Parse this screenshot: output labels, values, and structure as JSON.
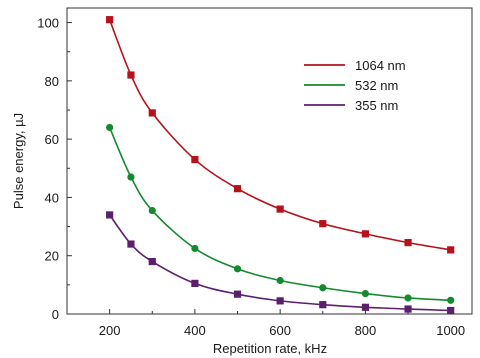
{
  "chart_data": {
    "type": "line",
    "xlabel": "Repetition rate, kHz",
    "ylabel": "Pulse energy, µJ",
    "xlim": [
      100,
      1050
    ],
    "ylim": [
      0,
      105
    ],
    "xticks": [
      200,
      400,
      600,
      800,
      1000
    ],
    "yticks": [
      0,
      20,
      40,
      60,
      80,
      100
    ],
    "grid": false,
    "legend_position": "top-right",
    "series": [
      {
        "name": "1064 nm",
        "color": "#b5121b",
        "marker": "square",
        "x": [
          200,
          250,
          300,
          400,
          500,
          600,
          700,
          800,
          900,
          1000
        ],
        "y": [
          101,
          82,
          69,
          53,
          43,
          36,
          31,
          27.5,
          24.5,
          22
        ]
      },
      {
        "name": "532 nm",
        "color": "#148a2e",
        "marker": "circle",
        "x": [
          200,
          250,
          300,
          400,
          500,
          600,
          700,
          800,
          900,
          1000
        ],
        "y": [
          64,
          47,
          35.5,
          22.5,
          15.5,
          11.5,
          9,
          7,
          5.5,
          4.7
        ]
      },
      {
        "name": "355 nm",
        "color": "#5b1f6e",
        "marker": "square",
        "x": [
          200,
          250,
          300,
          400,
          500,
          600,
          700,
          800,
          900,
          1000
        ],
        "y": [
          34,
          24,
          18,
          10.5,
          6.8,
          4.5,
          3.2,
          2.3,
          1.7,
          1.2
        ]
      }
    ]
  }
}
